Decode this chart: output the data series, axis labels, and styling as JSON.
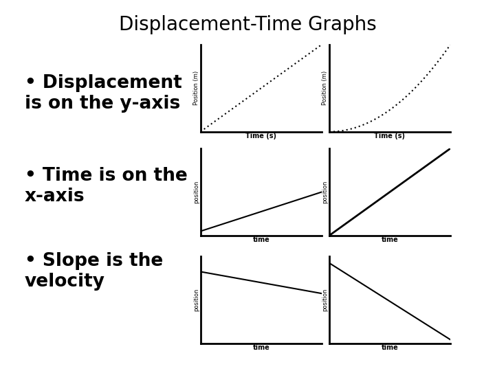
{
  "title": "Displacement-Time Graphs",
  "bullets": [
    "Displacement\nis on the y-axis",
    "Time is on the\nx-axis",
    "Slope is the\nvelocity"
  ],
  "bg_color": "#ffffff",
  "title_fontsize": 20,
  "bullet_fontsize": 19,
  "graphs": [
    {
      "ylabel": "Position (m)",
      "xlabel": "Time (s)",
      "type": "linear_dotted"
    },
    {
      "ylabel": "Position (m)",
      "xlabel": "Time (s)",
      "type": "curve_dotted"
    },
    {
      "ylabel": "position",
      "xlabel": "time",
      "type": "linear_low"
    },
    {
      "ylabel": "position",
      "xlabel": "time",
      "type": "linear_steep"
    },
    {
      "ylabel": "position",
      "xlabel": "time",
      "type": "linear_neg_low"
    },
    {
      "ylabel": "position",
      "xlabel": "time",
      "type": "linear_neg_steep"
    }
  ]
}
